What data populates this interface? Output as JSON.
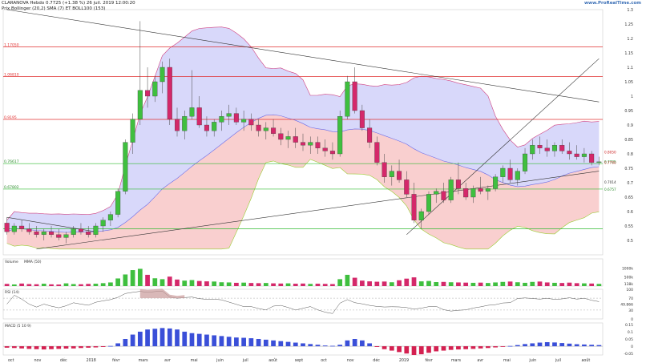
{
  "header": {
    "title": "CLARANOVA Hebdo 0.7725 (+1.38 %) 26 juil. 2019 12:00:20",
    "legend": [
      "Prix",
      "Bollinger (20,2)",
      "SMA (7)",
      "ET BOLL100 (153)"
    ],
    "brand": "www.ProRealTime.com"
  },
  "colors": {
    "candle_up": "#3fbf3f",
    "candle_down": "#d4286a",
    "boll_fill": "#c8c8f8",
    "boll_edge": "#6a6ae8",
    "cloud_pink": "#f4a8a8",
    "level_red": "#e03030",
    "level_green": "#33bb33",
    "trend": "#333333",
    "macd_pos": "#3a4fd8",
    "macd_neg": "#d42050",
    "rsi_area": "#c99a9a"
  },
  "chart_data": {
    "type": "candlestick",
    "panels": [
      {
        "name": "price",
        "ylim": [
          0.45,
          1.3
        ],
        "y_ticks": [
          "1.3",
          "1.25",
          "1.2",
          "1.15",
          "1.1",
          "1.05",
          "1",
          "0.95",
          "0.9",
          "0.85",
          "0.8",
          "0.75",
          "0.7",
          "0.65",
          "0.6",
          "0.55",
          "0.5"
        ],
        "levels": [
          {
            "label": "1.17050",
            "value": 1.1705,
            "color": "red"
          },
          {
            "label": "1.06810",
            "value": 1.0681,
            "color": "red"
          },
          {
            "label": "0.9195",
            "value": 0.9195,
            "color": "red"
          },
          {
            "label": "0.76617",
            "value": 0.7662,
            "color": "green"
          },
          {
            "label": "0.67802",
            "value": 0.678,
            "color": "green"
          },
          {
            "label": "",
            "value": 0.54,
            "color": "green"
          }
        ],
        "right_labels": [
          "0.7700",
          "0.7725",
          "0.8050",
          "0.7014",
          "0.6757"
        ],
        "candles_ohlc": [
          [
            0.56,
            0.58,
            0.52,
            0.53
          ],
          [
            0.53,
            0.56,
            0.52,
            0.55
          ],
          [
            0.55,
            0.57,
            0.53,
            0.54
          ],
          [
            0.54,
            0.56,
            0.52,
            0.53
          ],
          [
            0.53,
            0.55,
            0.51,
            0.52
          ],
          [
            0.52,
            0.54,
            0.5,
            0.53
          ],
          [
            0.53,
            0.55,
            0.51,
            0.52
          ],
          [
            0.52,
            0.54,
            0.5,
            0.51
          ],
          [
            0.51,
            0.53,
            0.49,
            0.52
          ],
          [
            0.52,
            0.55,
            0.51,
            0.54
          ],
          [
            0.54,
            0.56,
            0.52,
            0.53
          ],
          [
            0.53,
            0.55,
            0.51,
            0.52
          ],
          [
            0.52,
            0.56,
            0.51,
            0.55
          ],
          [
            0.55,
            0.58,
            0.53,
            0.57
          ],
          [
            0.57,
            0.6,
            0.55,
            0.59
          ],
          [
            0.59,
            0.68,
            0.58,
            0.67
          ],
          [
            0.67,
            0.85,
            0.66,
            0.84
          ],
          [
            0.84,
            0.94,
            0.8,
            0.92
          ],
          [
            0.92,
            1.26,
            0.9,
            1.02
          ],
          [
            1.02,
            1.1,
            0.96,
            1.0
          ],
          [
            1.0,
            1.07,
            0.98,
            1.05
          ],
          [
            1.05,
            1.12,
            1.01,
            1.1
          ],
          [
            1.1,
            1.13,
            0.9,
            0.92
          ],
          [
            0.92,
            0.96,
            0.86,
            0.88
          ],
          [
            0.88,
            0.95,
            0.85,
            0.93
          ],
          [
            0.93,
            1.09,
            0.92,
            0.96
          ],
          [
            0.96,
            1.0,
            0.89,
            0.9
          ],
          [
            0.9,
            0.93,
            0.86,
            0.88
          ],
          [
            0.88,
            0.92,
            0.86,
            0.91
          ],
          [
            0.91,
            0.95,
            0.88,
            0.93
          ],
          [
            0.93,
            0.97,
            0.9,
            0.94
          ],
          [
            0.94,
            0.96,
            0.9,
            0.91
          ],
          [
            0.91,
            0.95,
            0.88,
            0.92
          ],
          [
            0.92,
            0.94,
            0.88,
            0.9
          ],
          [
            0.9,
            0.92,
            0.86,
            0.88
          ],
          [
            0.88,
            0.91,
            0.85,
            0.89
          ],
          [
            0.89,
            0.92,
            0.86,
            0.87
          ],
          [
            0.87,
            0.89,
            0.83,
            0.85
          ],
          [
            0.85,
            0.88,
            0.82,
            0.86
          ],
          [
            0.86,
            0.89,
            0.82,
            0.84
          ],
          [
            0.84,
            0.87,
            0.81,
            0.83
          ],
          [
            0.83,
            0.86,
            0.8,
            0.84
          ],
          [
            0.84,
            0.86,
            0.8,
            0.82
          ],
          [
            0.82,
            0.85,
            0.79,
            0.81
          ],
          [
            0.81,
            0.84,
            0.78,
            0.8
          ],
          [
            0.8,
            0.95,
            0.79,
            0.93
          ],
          [
            0.93,
            1.07,
            0.92,
            1.05
          ],
          [
            1.05,
            1.1,
            0.94,
            0.95
          ],
          [
            0.95,
            0.97,
            0.88,
            0.89
          ],
          [
            0.89,
            0.92,
            0.82,
            0.84
          ],
          [
            0.84,
            0.86,
            0.76,
            0.77
          ],
          [
            0.77,
            0.8,
            0.7,
            0.72
          ],
          [
            0.72,
            0.76,
            0.69,
            0.74
          ],
          [
            0.74,
            0.78,
            0.7,
            0.71
          ],
          [
            0.71,
            0.74,
            0.65,
            0.66
          ],
          [
            0.66,
            0.7,
            0.56,
            0.57
          ],
          [
            0.57,
            0.61,
            0.54,
            0.6
          ],
          [
            0.6,
            0.67,
            0.59,
            0.66
          ],
          [
            0.66,
            0.68,
            0.63,
            0.67
          ],
          [
            0.67,
            0.7,
            0.63,
            0.64
          ],
          [
            0.64,
            0.72,
            0.63,
            0.71
          ],
          [
            0.71,
            0.77,
            0.66,
            0.68
          ],
          [
            0.68,
            0.7,
            0.64,
            0.65
          ],
          [
            0.65,
            0.69,
            0.63,
            0.68
          ],
          [
            0.68,
            0.72,
            0.66,
            0.67
          ],
          [
            0.67,
            0.69,
            0.64,
            0.68
          ],
          [
            0.68,
            0.73,
            0.67,
            0.72
          ],
          [
            0.72,
            0.76,
            0.7,
            0.75
          ],
          [
            0.75,
            0.78,
            0.7,
            0.71
          ],
          [
            0.71,
            0.75,
            0.69,
            0.74
          ],
          [
            0.74,
            0.82,
            0.73,
            0.8
          ],
          [
            0.8,
            0.85,
            0.78,
            0.83
          ],
          [
            0.83,
            0.86,
            0.8,
            0.82
          ],
          [
            0.82,
            0.85,
            0.79,
            0.81
          ],
          [
            0.81,
            0.84,
            0.79,
            0.83
          ],
          [
            0.83,
            0.85,
            0.8,
            0.81
          ],
          [
            0.81,
            0.84,
            0.78,
            0.8
          ],
          [
            0.8,
            0.83,
            0.78,
            0.79
          ],
          [
            0.79,
            0.82,
            0.77,
            0.8
          ],
          [
            0.8,
            0.81,
            0.76,
            0.77
          ],
          [
            0.77,
            0.79,
            0.76,
            0.7725
          ]
        ]
      },
      {
        "name": "volume",
        "label": "Volume",
        "label2": "MMA (50)",
        "ylim": [
          0,
          1500000
        ],
        "y_ticks": [
          "1000k",
          "500k",
          "138k"
        ],
        "values": [
          120,
          90,
          140,
          110,
          100,
          130,
          95,
          85,
          150,
          110,
          100,
          120,
          130,
          160,
          200,
          420,
          640,
          880,
          950,
          620,
          430,
          380,
          520,
          360,
          300,
          330,
          280,
          260,
          250,
          210,
          200,
          180,
          190,
          170,
          160,
          170,
          150,
          140,
          150,
          130,
          140,
          120,
          130,
          120,
          110,
          380,
          620,
          460,
          300,
          260,
          240,
          250,
          210,
          320,
          410,
          480,
          260,
          280,
          220,
          230,
          210,
          200,
          190,
          180,
          190,
          170,
          200,
          230,
          250,
          210,
          180,
          230,
          250,
          200,
          180,
          170,
          190,
          160,
          150,
          140,
          120
        ]
      },
      {
        "name": "rsi",
        "label": "RSI (14)",
        "ylim": [
          0,
          100
        ],
        "y_ticks": [
          "100",
          "70",
          "49.866",
          "30",
          "0"
        ]
      },
      {
        "name": "macd",
        "label": "MACD (5 10 9)",
        "ylim": [
          -0.06,
          0.16
        ],
        "y_ticks": [
          "0.15",
          "0.1",
          "0.05",
          "0",
          "-0.05"
        ],
        "values": [
          -0.01,
          -0.012,
          -0.015,
          -0.018,
          -0.02,
          -0.022,
          -0.02,
          -0.018,
          -0.016,
          -0.015,
          -0.012,
          -0.01,
          -0.008,
          -0.005,
          0.002,
          0.02,
          0.05,
          0.08,
          0.1,
          0.115,
          0.12,
          0.125,
          0.122,
          0.115,
          0.1,
          0.09,
          0.085,
          0.08,
          0.075,
          0.07,
          0.065,
          0.06,
          0.058,
          0.055,
          0.05,
          0.045,
          0.04,
          0.035,
          0.03,
          0.025,
          0.02,
          0.015,
          0.01,
          0.005,
          0.003,
          0.01,
          0.04,
          0.05,
          0.04,
          0.02,
          -0.005,
          -0.02,
          -0.03,
          -0.04,
          -0.05,
          -0.06,
          -0.055,
          -0.045,
          -0.035,
          -0.03,
          -0.025,
          -0.022,
          -0.02,
          -0.018,
          -0.015,
          -0.012,
          -0.008,
          -0.004,
          0.002,
          0.008,
          0.015,
          0.02,
          0.025,
          0.028,
          0.026,
          0.022,
          0.018,
          0.014,
          0.012,
          0.01,
          0.008
        ]
      }
    ],
    "x_labels": [
      "oct",
      "nov",
      "déc",
      "2018",
      "févr",
      "mars",
      "avr",
      "mai",
      "juin",
      "juil",
      "août",
      "sept",
      "oct",
      "nov",
      "déc",
      "2019",
      "févr",
      "mars",
      "avr",
      "mai",
      "juin",
      "juil",
      "août"
    ]
  }
}
